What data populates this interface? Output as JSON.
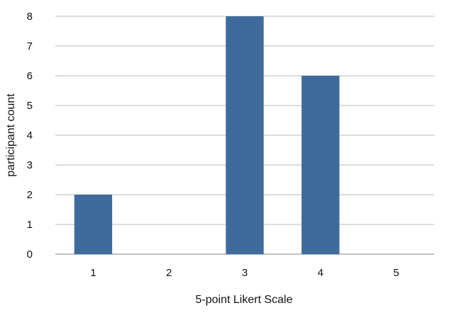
{
  "chart_data": {
    "type": "bar",
    "categories": [
      "1",
      "2",
      "3",
      "4",
      "5"
    ],
    "values": [
      2,
      0,
      8,
      6,
      0
    ],
    "xlabel": "5-point Likert Scale",
    "ylabel": "participant count",
    "ylim": [
      0,
      8
    ],
    "yticks": [
      0,
      1,
      2,
      3,
      4,
      5,
      6,
      7,
      8
    ],
    "grid": true,
    "bar_color": "#3f6b9c"
  }
}
